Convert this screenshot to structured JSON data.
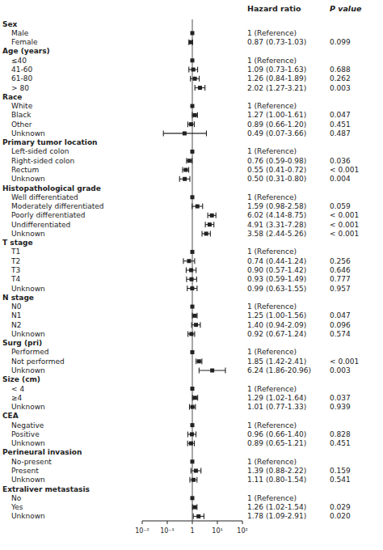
{
  "chart_data": {
    "type": "forest",
    "log": "x",
    "grid": false,
    "hr_header": "Hazard ratio",
    "pval_header": "P value",
    "xlim": [
      0.01,
      100
    ],
    "xticks": [
      {
        "value": 0.01,
        "label": "10⁻²"
      },
      {
        "value": 0.1,
        "label": "10⁻¹"
      },
      1,
      {
        "value": 10,
        "label": "10¹"
      },
      {
        "value": 100,
        "label": "10²"
      }
    ],
    "rows": [
      {
        "label": "Sex",
        "type": "header"
      },
      {
        "label": "Male",
        "type": "ref",
        "hr": 1,
        "hr_text": "1 (Reference)"
      },
      {
        "label": "Female",
        "type": "data",
        "hr": 0.87,
        "ci_lo": 0.73,
        "ci_hi": 1.03,
        "hr_text": "0.87 (0.73-1.03)",
        "pval": "0.099"
      },
      {
        "label": "Age (years)",
        "type": "header"
      },
      {
        "label": "≤40",
        "type": "ref",
        "hr": 1,
        "hr_text": "1 (Reference)"
      },
      {
        "label": "41-60",
        "type": "data",
        "hr": 1.09,
        "ci_lo": 0.73,
        "ci_hi": 1.63,
        "hr_text": "1.09 (0.73-1.63)",
        "pval": "0.688"
      },
      {
        "label": "61-80",
        "type": "data",
        "hr": 1.26,
        "ci_lo": 0.84,
        "ci_hi": 1.89,
        "hr_text": "1.26 (0.84-1.89)",
        "pval": "0.262"
      },
      {
        "label": "> 80",
        "type": "data",
        "hr": 2.02,
        "ci_lo": 1.27,
        "ci_hi": 3.21,
        "hr_text": "2.02 (1.27-3.21)",
        "pval": "0.003"
      },
      {
        "label": "Race",
        "type": "header"
      },
      {
        "label": "White",
        "type": "ref",
        "hr": 1,
        "hr_text": "1 (Reference)"
      },
      {
        "label": "Black",
        "type": "data",
        "hr": 1.27,
        "ci_lo": 1.0,
        "ci_hi": 1.61,
        "hr_text": "1.27 (1.00-1.61)",
        "pval": "0.047"
      },
      {
        "label": "Other",
        "type": "data",
        "hr": 0.89,
        "ci_lo": 0.66,
        "ci_hi": 1.2,
        "hr_text": "0.89 (0.66-1.20)",
        "pval": "0.451"
      },
      {
        "label": "Unknown",
        "type": "data",
        "hr": 0.49,
        "ci_lo": 0.07,
        "ci_hi": 3.66,
        "hr_text": "0.49 (0.07-3.66)",
        "pval": "0.487"
      },
      {
        "label": "Primary tumor location",
        "type": "header"
      },
      {
        "label": "Left-sided colon",
        "type": "ref",
        "hr": 1,
        "hr_text": "1 (Reference)"
      },
      {
        "label": "Right-sided colon",
        "type": "data",
        "hr": 0.76,
        "ci_lo": 0.59,
        "ci_hi": 0.98,
        "hr_text": "0.76 (0.59-0.98)",
        "pval": "0.036"
      },
      {
        "label": "Rectum",
        "type": "data",
        "hr": 0.55,
        "ci_lo": 0.41,
        "ci_hi": 0.72,
        "hr_text": "0.55 (0.41-0.72)",
        "pval": "< 0.001"
      },
      {
        "label": "Unknown",
        "type": "data",
        "hr": 0.5,
        "ci_lo": 0.31,
        "ci_hi": 0.8,
        "hr_text": "0.50 (0.31-0.80)",
        "pval": "0.004"
      },
      {
        "label": "Histopathological grade",
        "type": "header"
      },
      {
        "label": "Well differentiated",
        "type": "ref",
        "hr": 1,
        "hr_text": "1 (Reference)"
      },
      {
        "label": "Moderately differentiated",
        "type": "data",
        "hr": 1.59,
        "ci_lo": 0.98,
        "ci_hi": 2.58,
        "hr_text": "1.59 (0.98-2.58)",
        "pval": "0.059"
      },
      {
        "label": "Poorly differentiated",
        "type": "data",
        "hr": 6.02,
        "ci_lo": 4.14,
        "ci_hi": 8.75,
        "hr_text": "6.02 (4.14-8.75)",
        "pval": "< 0.001"
      },
      {
        "label": "Undifferentiated",
        "type": "data",
        "hr": 4.91,
        "ci_lo": 3.31,
        "ci_hi": 7.28,
        "hr_text": "4.91 (3.31-7.28)",
        "pval": "< 0.001"
      },
      {
        "label": "Unknown",
        "type": "data",
        "hr": 3.58,
        "ci_lo": 2.44,
        "ci_hi": 5.26,
        "hr_text": "3.58 (2.44-5.26)",
        "pval": "< 0.001"
      },
      {
        "label": "T stage",
        "type": "header"
      },
      {
        "label": "T1",
        "type": "ref",
        "hr": 1,
        "hr_text": "1 (Reference)"
      },
      {
        "label": "T2",
        "type": "data",
        "hr": 0.74,
        "ci_lo": 0.44,
        "ci_hi": 1.24,
        "hr_text": "0.74 (0.44-1.24)",
        "pval": "0.256"
      },
      {
        "label": "T3",
        "type": "data",
        "hr": 0.9,
        "ci_lo": 0.57,
        "ci_hi": 1.42,
        "hr_text": "0.90 (0.57-1.42)",
        "pval": "0.646"
      },
      {
        "label": "T4",
        "type": "data",
        "hr": 0.93,
        "ci_lo": 0.59,
        "ci_hi": 1.49,
        "hr_text": "0.93 (0.59-1.49)",
        "pval": "0.777"
      },
      {
        "label": "Unknown",
        "type": "data",
        "hr": 0.99,
        "ci_lo": 0.63,
        "ci_hi": 1.55,
        "hr_text": "0.99 (0.63-1.55)",
        "pval": "0.957"
      },
      {
        "label": "N stage",
        "type": "header"
      },
      {
        "label": "N0",
        "type": "ref",
        "hr": 1,
        "hr_text": "1 (Reference)"
      },
      {
        "label": "N1",
        "type": "data",
        "hr": 1.25,
        "ci_lo": 1.0,
        "ci_hi": 1.56,
        "hr_text": "1.25 (1.00-1.56)",
        "pval": "0.047"
      },
      {
        "label": "N2",
        "type": "data",
        "hr": 1.4,
        "ci_lo": 0.94,
        "ci_hi": 2.09,
        "hr_text": "1.40 (0.94-2.09)",
        "pval": "0.096"
      },
      {
        "label": "Unknown",
        "type": "data",
        "hr": 0.92,
        "ci_lo": 0.67,
        "ci_hi": 1.24,
        "hr_text": "0.92 (0.67-1.24)",
        "pval": "0.574"
      },
      {
        "label": "Surg (pri)",
        "type": "header"
      },
      {
        "label": "Performed",
        "type": "ref",
        "hr": 1,
        "hr_text": "1 (Reference)"
      },
      {
        "label": "Not performed",
        "type": "data",
        "hr": 1.85,
        "ci_lo": 1.42,
        "ci_hi": 2.41,
        "hr_text": "1.85 (1.42-2.41)",
        "pval": "< 0.001"
      },
      {
        "label": "Unknown",
        "type": "data",
        "hr": 6.24,
        "ci_lo": 1.86,
        "ci_hi": 20.96,
        "hr_text": "6.24 (1.86-20.96)",
        "pval": "0.003"
      },
      {
        "label": "Size (cm)",
        "type": "header"
      },
      {
        "label": "< 4",
        "type": "ref",
        "hr": 1,
        "hr_text": "1 (Reference)"
      },
      {
        "label": "≥4",
        "type": "data",
        "hr": 1.29,
        "ci_lo": 1.02,
        "ci_hi": 1.64,
        "hr_text": "1.29 (1.02-1.64)",
        "pval": "0.037"
      },
      {
        "label": "Unknown",
        "type": "data",
        "hr": 1.01,
        "ci_lo": 0.77,
        "ci_hi": 1.33,
        "hr_text": "1.01 (0.77-1.33)",
        "pval": "0.939"
      },
      {
        "label": "CEA",
        "type": "header"
      },
      {
        "label": "Negative",
        "type": "ref",
        "hr": 1,
        "hr_text": "1 (Reference)"
      },
      {
        "label": "Positive",
        "type": "data",
        "hr": 0.96,
        "ci_lo": 0.66,
        "ci_hi": 1.4,
        "hr_text": "0.96 (0.66-1.40)",
        "pval": "0.828"
      },
      {
        "label": "Unknown",
        "type": "data",
        "hr": 0.89,
        "ci_lo": 0.65,
        "ci_hi": 1.21,
        "hr_text": "0.89 (0.65-1.21)",
        "pval": "0.451"
      },
      {
        "label": "Perineural invasion",
        "type": "header"
      },
      {
        "label": "No-present",
        "type": "ref",
        "hr": 1,
        "hr_text": "1 (Reference)"
      },
      {
        "label": "Present",
        "type": "data",
        "hr": 1.39,
        "ci_lo": 0.88,
        "ci_hi": 2.22,
        "hr_text": "1.39 (0.88-2.22)",
        "pval": "0.159"
      },
      {
        "label": "Unknown",
        "type": "data",
        "hr": 1.11,
        "ci_lo": 0.8,
        "ci_hi": 1.54,
        "hr_text": "1.11 (0.80-1.54)",
        "pval": "0.541"
      },
      {
        "label": "Extraliver metastasis",
        "type": "header"
      },
      {
        "label": "No",
        "type": "ref",
        "hr": 1,
        "hr_text": "1 (Reference)"
      },
      {
        "label": "Yes",
        "type": "data",
        "hr": 1.26,
        "ci_lo": 1.02,
        "ci_hi": 1.54,
        "hr_text": "1.26 (1.02-1.54)",
        "pval": "0.029"
      },
      {
        "label": "Unknown",
        "type": "data",
        "hr": 1.78,
        "ci_lo": 1.09,
        "ci_hi": 2.91,
        "hr_text": "1.78 (1.09-2.91)",
        "pval": "0.020"
      }
    ]
  }
}
